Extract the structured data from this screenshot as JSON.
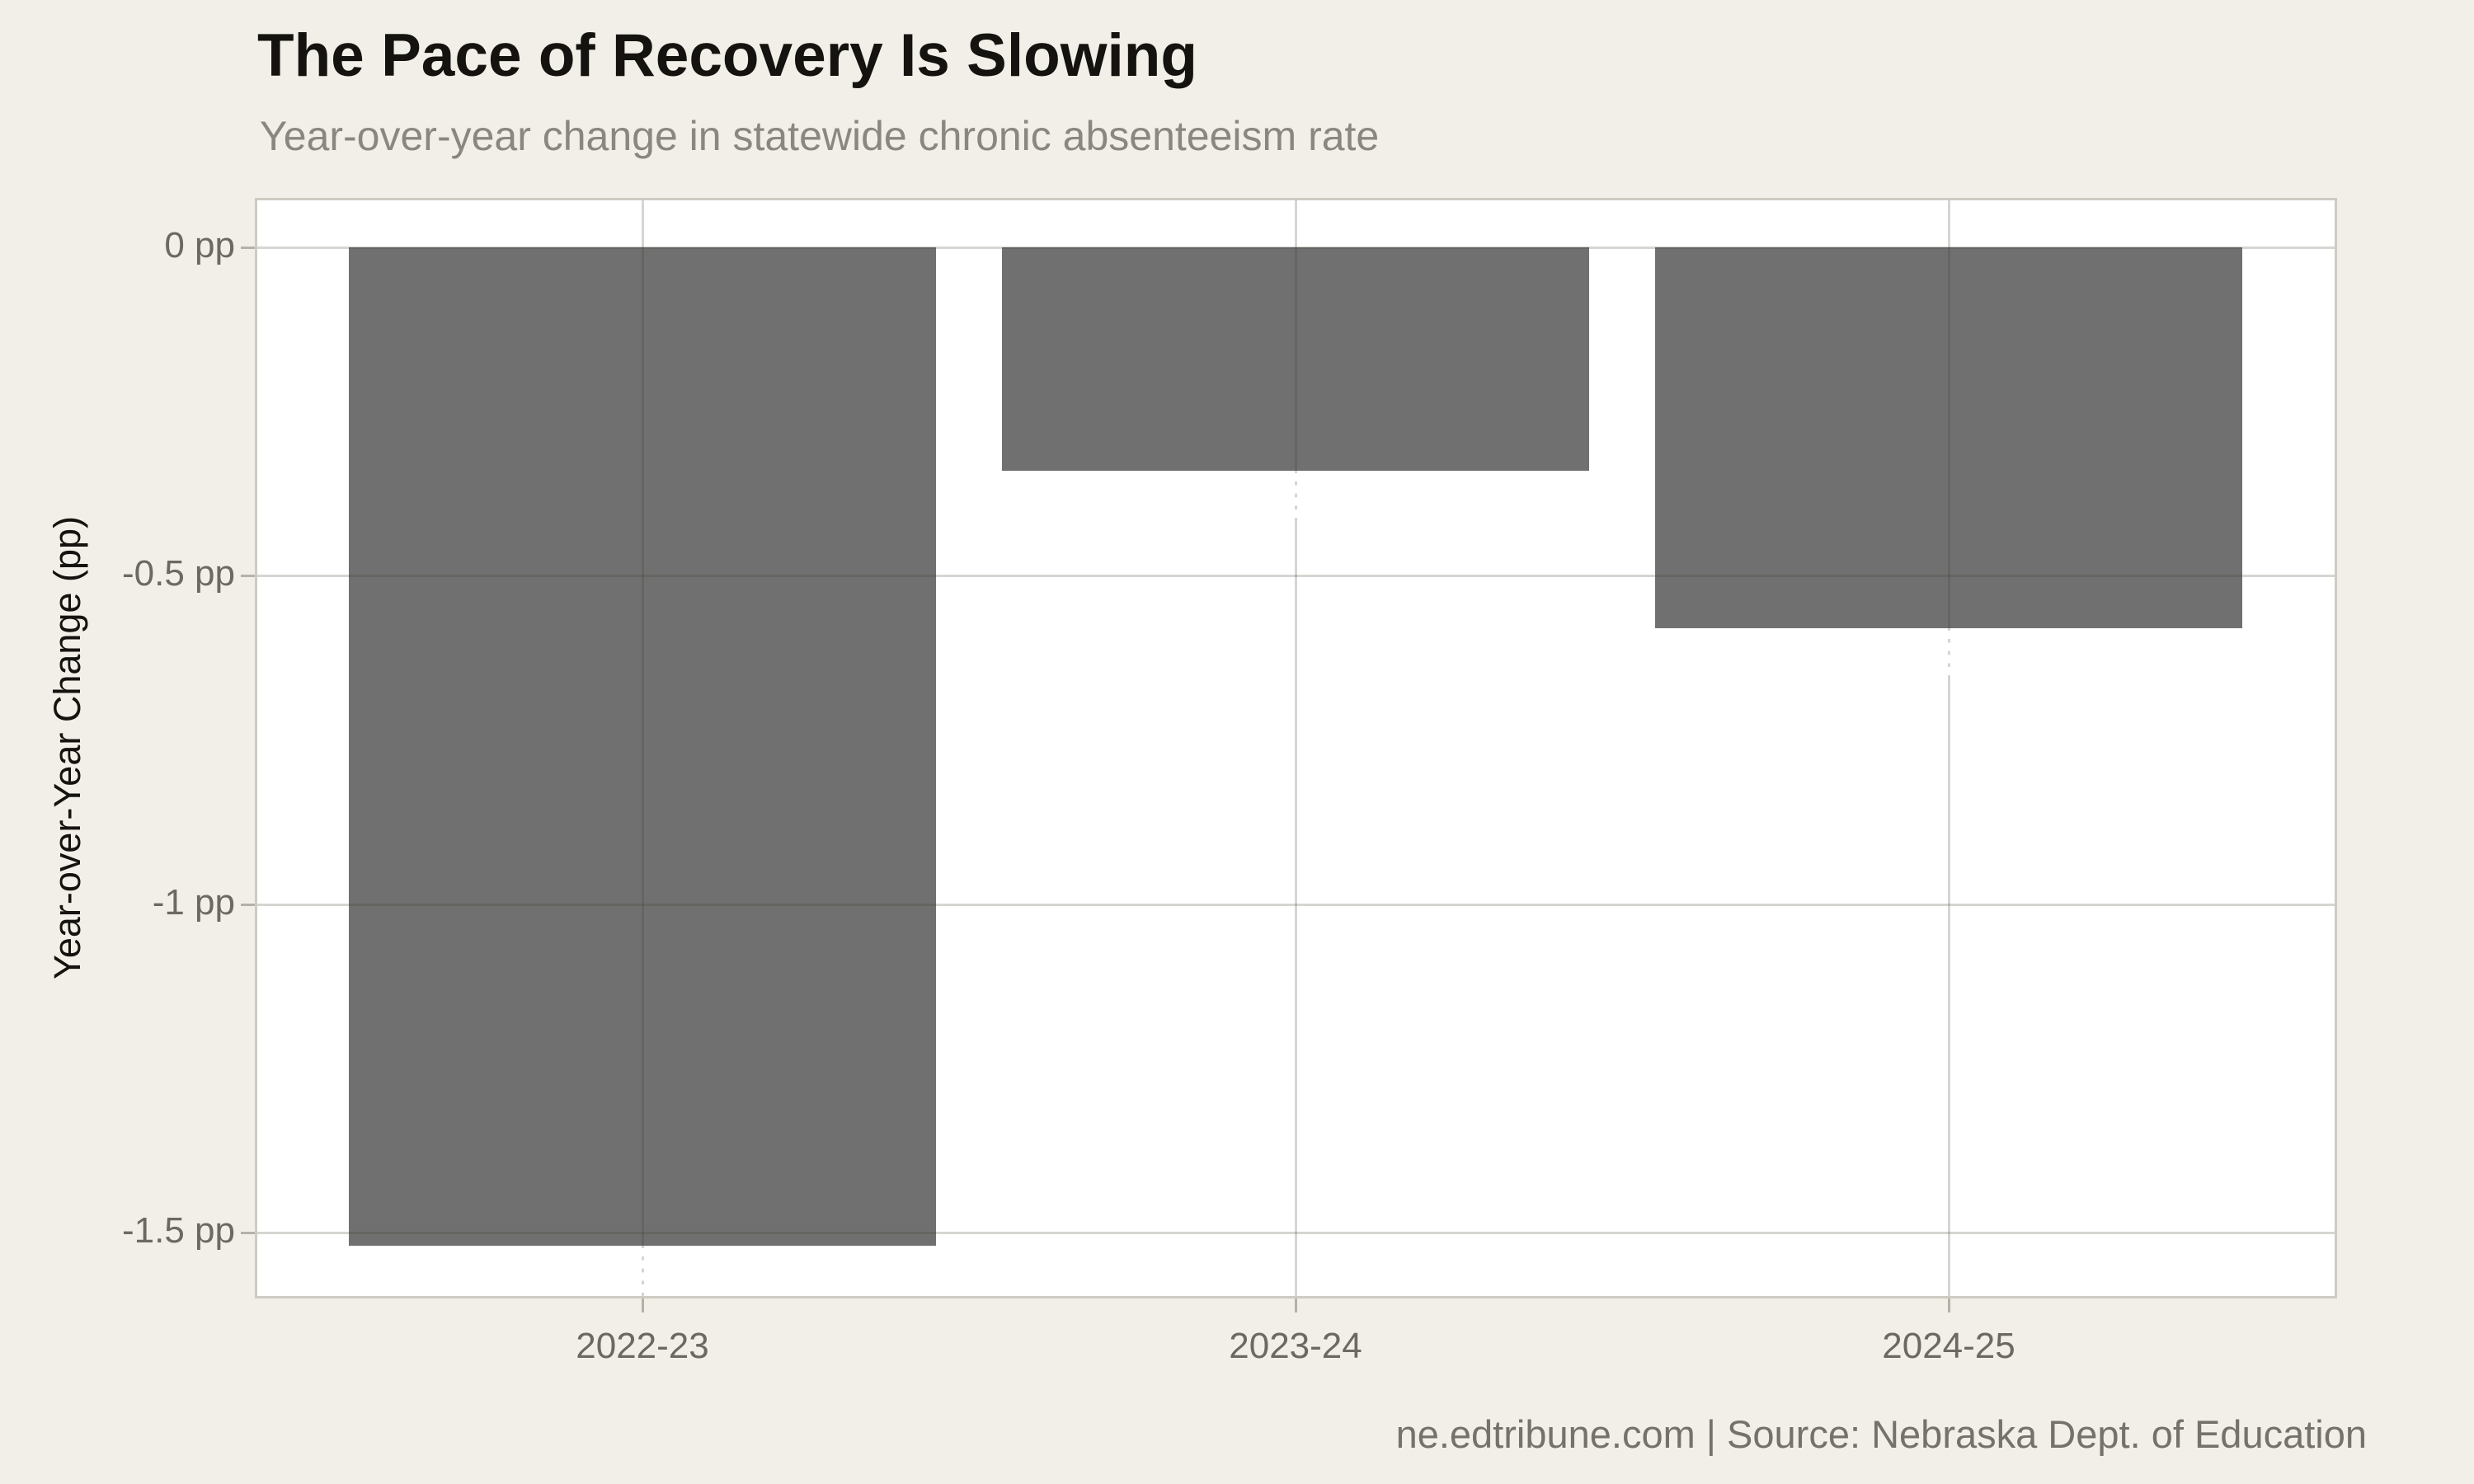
{
  "header": {
    "title": "The Pace of Recovery Is Slowing",
    "subtitle": "Year-over-year change in statewide chronic absenteeism rate"
  },
  "footer": {
    "credit": "ne.edtribune.com | Source: Nebraska Dept. of Education"
  },
  "colors": {
    "background": "#f2efe8",
    "panel": "#ffffff",
    "panel_border": "#cfcbc2",
    "bar": "#707070",
    "gridline": "rgba(70,62,48,0.22)",
    "tick_mark": "#b5b1a8",
    "tick_label": "#6c6862",
    "title": "#15130f",
    "subtitle": "#8a8680",
    "credit": "#75716b"
  },
  "chart_data": {
    "type": "bar",
    "title": "The Pace of Recovery Is Slowing",
    "subtitle": "Year-over-year change in statewide chronic absenteeism rate",
    "categories": [
      "2022-23",
      "2023-24",
      "2024-25"
    ],
    "values": [
      -1.52,
      -0.34,
      -0.58
    ],
    "xlabel": "",
    "ylabel": "Year-over-Year Change (pp)",
    "ylim": [
      0.075,
      -1.6
    ],
    "yticks": [
      {
        "value": 0,
        "label": "0 pp"
      },
      {
        "value": -0.5,
        "label": "-0.5 pp"
      },
      {
        "value": -1,
        "label": "-1 pp"
      },
      {
        "value": -1.5,
        "label": "-1.5 pp"
      }
    ],
    "grid": true,
    "legend": false,
    "bar_color": "#707070",
    "source": "ne.edtribune.com | Source: Nebraska Dept. of Education"
  }
}
